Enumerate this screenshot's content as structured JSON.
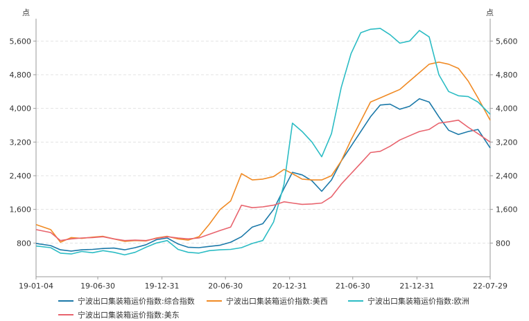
{
  "chart_data": {
    "type": "line",
    "y_unit_left": "点",
    "y_unit_right": "点",
    "ylim": [
      0,
      6000
    ],
    "y_ticks": [
      800,
      1600,
      2400,
      3200,
      4000,
      4800,
      5600
    ],
    "y_tick_labels": [
      "800",
      "1,600",
      "2,400",
      "3,200",
      "4,000",
      "4,800",
      "5,600"
    ],
    "x_range": [
      "2019-01-04",
      "2022-07-29"
    ],
    "x_tick_labels": [
      {
        "date": "2019-01-04",
        "label": "19-01-04"
      },
      {
        "date": "2019-06-30",
        "label": "19-06-30"
      },
      {
        "date": "2019-12-31",
        "label": "19-12-31"
      },
      {
        "date": "2020-06-30",
        "label": "20-06-30"
      },
      {
        "date": "2020-12-31",
        "label": "20-12-31"
      },
      {
        "date": "2021-06-30",
        "label": "21-06-30"
      },
      {
        "date": "2021-12-31",
        "label": "21-12-31"
      },
      {
        "date": "2022-07-29",
        "label": "22-07-29"
      }
    ],
    "grid": true,
    "legend_position": "bottom",
    "series": [
      {
        "name": "宁波出口集装箱运价指数:综合指数",
        "color": "#1a78a8",
        "points": [
          [
            "2019-01-04",
            790
          ],
          [
            "2019-02-15",
            740
          ],
          [
            "2019-03-15",
            640
          ],
          [
            "2019-04-15",
            610
          ],
          [
            "2019-05-15",
            640
          ],
          [
            "2019-06-15",
            650
          ],
          [
            "2019-07-15",
            670
          ],
          [
            "2019-08-15",
            680
          ],
          [
            "2019-09-15",
            640
          ],
          [
            "2019-10-15",
            690
          ],
          [
            "2019-11-15",
            760
          ],
          [
            "2019-12-15",
            880
          ],
          [
            "2020-01-15",
            920
          ],
          [
            "2020-02-15",
            780
          ],
          [
            "2020-03-15",
            700
          ],
          [
            "2020-04-15",
            690
          ],
          [
            "2020-05-15",
            720
          ],
          [
            "2020-06-15",
            750
          ],
          [
            "2020-07-15",
            820
          ],
          [
            "2020-08-15",
            950
          ],
          [
            "2020-09-15",
            1180
          ],
          [
            "2020-10-15",
            1260
          ],
          [
            "2020-11-15",
            1600
          ],
          [
            "2020-12-15",
            2100
          ],
          [
            "2021-01-08",
            2480
          ],
          [
            "2021-02-05",
            2420
          ],
          [
            "2021-03-05",
            2280
          ],
          [
            "2021-04-02",
            2030
          ],
          [
            "2021-04-30",
            2300
          ],
          [
            "2021-05-28",
            2750
          ],
          [
            "2021-06-25",
            3100
          ],
          [
            "2021-07-23",
            3450
          ],
          [
            "2021-08-20",
            3800
          ],
          [
            "2021-09-17",
            4080
          ],
          [
            "2021-10-15",
            4100
          ],
          [
            "2021-11-12",
            3980
          ],
          [
            "2021-12-10",
            4050
          ],
          [
            "2022-01-07",
            4230
          ],
          [
            "2022-02-04",
            4150
          ],
          [
            "2022-03-04",
            3800
          ],
          [
            "2022-04-01",
            3480
          ],
          [
            "2022-04-29",
            3380
          ],
          [
            "2022-05-27",
            3450
          ],
          [
            "2022-06-24",
            3500
          ],
          [
            "2022-07-29",
            3060
          ]
        ]
      },
      {
        "name": "宁波出口集装箱运价指数:美西",
        "color": "#f08a24",
        "points": [
          [
            "2019-01-04",
            1240
          ],
          [
            "2019-02-15",
            1120
          ],
          [
            "2019-03-15",
            820
          ],
          [
            "2019-04-15",
            930
          ],
          [
            "2019-05-15",
            910
          ],
          [
            "2019-06-15",
            940
          ],
          [
            "2019-07-15",
            960
          ],
          [
            "2019-08-15",
            900
          ],
          [
            "2019-09-15",
            840
          ],
          [
            "2019-10-15",
            860
          ],
          [
            "2019-11-15",
            850
          ],
          [
            "2019-12-15",
            920
          ],
          [
            "2020-01-15",
            960
          ],
          [
            "2020-02-15",
            900
          ],
          [
            "2020-03-15",
            870
          ],
          [
            "2020-04-15",
            950
          ],
          [
            "2020-05-15",
            1250
          ],
          [
            "2020-06-15",
            1600
          ],
          [
            "2020-07-15",
            1800
          ],
          [
            "2020-08-15",
            2450
          ],
          [
            "2020-09-15",
            2300
          ],
          [
            "2020-10-15",
            2320
          ],
          [
            "2020-11-15",
            2380
          ],
          [
            "2020-12-15",
            2550
          ],
          [
            "2021-01-08",
            2450
          ],
          [
            "2021-02-05",
            2320
          ],
          [
            "2021-03-05",
            2300
          ],
          [
            "2021-04-02",
            2300
          ],
          [
            "2021-04-30",
            2400
          ],
          [
            "2021-05-28",
            2750
          ],
          [
            "2021-06-25",
            3250
          ],
          [
            "2021-07-23",
            3700
          ],
          [
            "2021-08-20",
            4150
          ],
          [
            "2021-09-17",
            4250
          ],
          [
            "2021-10-15",
            4350
          ],
          [
            "2021-11-12",
            4450
          ],
          [
            "2021-12-10",
            4650
          ],
          [
            "2022-01-07",
            4850
          ],
          [
            "2022-02-04",
            5050
          ],
          [
            "2022-03-04",
            5100
          ],
          [
            "2022-04-01",
            5050
          ],
          [
            "2022-04-29",
            4950
          ],
          [
            "2022-05-27",
            4650
          ],
          [
            "2022-06-24",
            4250
          ],
          [
            "2022-07-29",
            3720
          ]
        ]
      },
      {
        "name": "宁波出口集装箱运价指数:欧洲",
        "color": "#2bbcc4",
        "points": [
          [
            "2019-01-04",
            730
          ],
          [
            "2019-02-15",
            690
          ],
          [
            "2019-03-15",
            560
          ],
          [
            "2019-04-15",
            540
          ],
          [
            "2019-05-15",
            600
          ],
          [
            "2019-06-15",
            570
          ],
          [
            "2019-07-15",
            620
          ],
          [
            "2019-08-15",
            580
          ],
          [
            "2019-09-15",
            520
          ],
          [
            "2019-10-15",
            580
          ],
          [
            "2019-11-15",
            700
          ],
          [
            "2019-12-15",
            800
          ],
          [
            "2020-01-15",
            860
          ],
          [
            "2020-02-15",
            650
          ],
          [
            "2020-03-15",
            580
          ],
          [
            "2020-04-15",
            560
          ],
          [
            "2020-05-15",
            620
          ],
          [
            "2020-06-15",
            640
          ],
          [
            "2020-07-15",
            650
          ],
          [
            "2020-08-15",
            690
          ],
          [
            "2020-09-15",
            790
          ],
          [
            "2020-10-15",
            860
          ],
          [
            "2020-11-15",
            1300
          ],
          [
            "2020-12-15",
            2200
          ],
          [
            "2021-01-08",
            3650
          ],
          [
            "2021-02-05",
            3450
          ],
          [
            "2021-03-05",
            3200
          ],
          [
            "2021-04-02",
            2850
          ],
          [
            "2021-04-30",
            3400
          ],
          [
            "2021-05-28",
            4500
          ],
          [
            "2021-06-25",
            5300
          ],
          [
            "2021-07-23",
            5800
          ],
          [
            "2021-08-20",
            5880
          ],
          [
            "2021-09-17",
            5900
          ],
          [
            "2021-10-15",
            5750
          ],
          [
            "2021-11-12",
            5550
          ],
          [
            "2021-12-10",
            5600
          ],
          [
            "2022-01-07",
            5850
          ],
          [
            "2022-02-04",
            5700
          ],
          [
            "2022-03-04",
            4800
          ],
          [
            "2022-04-01",
            4400
          ],
          [
            "2022-04-29",
            4300
          ],
          [
            "2022-05-27",
            4280
          ],
          [
            "2022-06-24",
            4150
          ],
          [
            "2022-07-29",
            3860
          ]
        ]
      },
      {
        "name": "宁波出口集装箱运价指数:美东",
        "color": "#e8636d",
        "points": [
          [
            "2019-01-04",
            1120
          ],
          [
            "2019-02-15",
            1050
          ],
          [
            "2019-03-15",
            860
          ],
          [
            "2019-04-15",
            900
          ],
          [
            "2019-05-15",
            920
          ],
          [
            "2019-06-15",
            930
          ],
          [
            "2019-07-15",
            950
          ],
          [
            "2019-08-15",
            900
          ],
          [
            "2019-09-15",
            860
          ],
          [
            "2019-10-15",
            870
          ],
          [
            "2019-11-15",
            860
          ],
          [
            "2019-12-15",
            910
          ],
          [
            "2020-01-15",
            950
          ],
          [
            "2020-02-15",
            920
          ],
          [
            "2020-03-15",
            900
          ],
          [
            "2020-04-15",
            920
          ],
          [
            "2020-05-15",
            1010
          ],
          [
            "2020-06-15",
            1100
          ],
          [
            "2020-07-15",
            1180
          ],
          [
            "2020-08-15",
            1700
          ],
          [
            "2020-09-15",
            1640
          ],
          [
            "2020-10-15",
            1660
          ],
          [
            "2020-11-15",
            1700
          ],
          [
            "2020-12-15",
            1780
          ],
          [
            "2021-01-08",
            1750
          ],
          [
            "2021-02-05",
            1720
          ],
          [
            "2021-03-05",
            1730
          ],
          [
            "2021-04-02",
            1750
          ],
          [
            "2021-04-30",
            1900
          ],
          [
            "2021-05-28",
            2200
          ],
          [
            "2021-06-25",
            2450
          ],
          [
            "2021-07-23",
            2700
          ],
          [
            "2021-08-20",
            2950
          ],
          [
            "2021-09-17",
            2980
          ],
          [
            "2021-10-15",
            3100
          ],
          [
            "2021-11-12",
            3250
          ],
          [
            "2021-12-10",
            3350
          ],
          [
            "2022-01-07",
            3450
          ],
          [
            "2022-02-04",
            3500
          ],
          [
            "2022-03-04",
            3650
          ],
          [
            "2022-04-01",
            3680
          ],
          [
            "2022-04-29",
            3720
          ],
          [
            "2022-05-27",
            3550
          ],
          [
            "2022-06-24",
            3400
          ],
          [
            "2022-07-29",
            3200
          ]
        ]
      }
    ]
  }
}
